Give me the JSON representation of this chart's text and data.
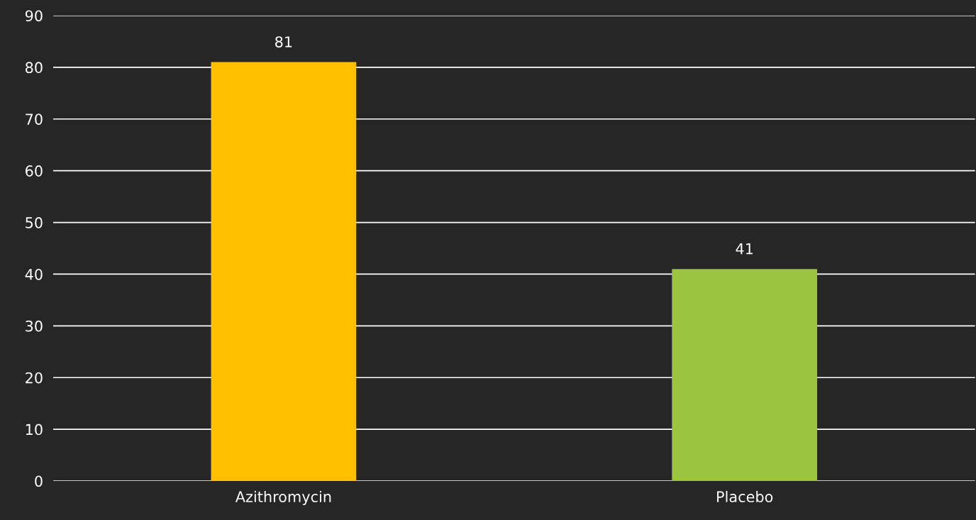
{
  "chart_data": {
    "type": "bar",
    "categories": [
      "Azithromycin",
      "Placebo"
    ],
    "values": [
      81,
      41
    ],
    "colors": [
      "#ffc000",
      "#9bc440"
    ],
    "ylim": [
      0,
      90
    ],
    "yticks": [
      0,
      10,
      20,
      30,
      40,
      50,
      60,
      70,
      80,
      90
    ],
    "grid": "y",
    "data_labels": true
  }
}
